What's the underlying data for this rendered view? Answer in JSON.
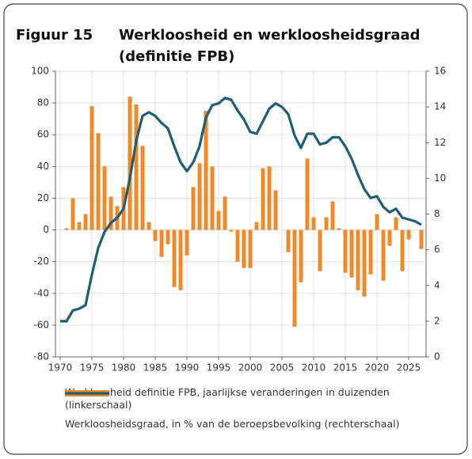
{
  "chart_data": {
    "type": "bar_line",
    "label": "Figuur 15",
    "title": [
      "Werkloosheid en werkloosheidsgraad",
      "(definitie FPB)"
    ],
    "x": [
      1970,
      1971,
      1972,
      1973,
      1974,
      1975,
      1976,
      1977,
      1978,
      1979,
      1980,
      1981,
      1982,
      1983,
      1984,
      1985,
      1986,
      1987,
      1988,
      1989,
      1990,
      1991,
      1992,
      1993,
      1994,
      1995,
      1996,
      1997,
      1998,
      1999,
      2000,
      2001,
      2002,
      2003,
      2004,
      2005,
      2006,
      2007,
      2008,
      2009,
      2010,
      2011,
      2012,
      2013,
      2014,
      2015,
      2016,
      2017,
      2018,
      2019,
      2020,
      2021,
      2022,
      2023,
      2024,
      2025,
      2026,
      2027
    ],
    "series": [
      {
        "name": "Werkloosheid definitie FPB, jaarlijkse veranderingen in duizenden (linkerschaal)",
        "kind": "bar",
        "color": "#f0892a",
        "axis": "y",
        "values": [
          0,
          1,
          20,
          5,
          10,
          78,
          61,
          40,
          21,
          15,
          27,
          84,
          79,
          53,
          5,
          -7,
          -17,
          -9,
          -36,
          -38,
          -16,
          27,
          42,
          75,
          40,
          12,
          21,
          -1,
          -20,
          -24,
          -24,
          5,
          39,
          40,
          25,
          0,
          -14,
          -61,
          -33,
          45,
          8,
          -26,
          8,
          18,
          1,
          -27,
          -30,
          -38,
          -42,
          -28,
          10,
          -32,
          -10,
          8,
          -26,
          -6,
          0,
          -12
        ]
      },
      {
        "name": "Werkloosheidsgraad, in % van de beroepsbevolking (rechterschaal)",
        "kind": "line",
        "color": "#1f5e74",
        "axis": "y2",
        "values": [
          2.0,
          2.0,
          2.6,
          2.7,
          2.9,
          4.6,
          6.1,
          7.0,
          7.5,
          7.8,
          8.3,
          10.0,
          12.1,
          13.5,
          13.7,
          13.5,
          13.1,
          12.8,
          11.8,
          10.9,
          10.4,
          10.9,
          11.8,
          13.4,
          14.1,
          14.2,
          14.5,
          14.4,
          13.8,
          13.3,
          12.6,
          12.5,
          13.2,
          13.9,
          14.2,
          14.0,
          13.6,
          12.4,
          11.7,
          12.5,
          12.5,
          11.9,
          12.0,
          12.3,
          12.3,
          11.8,
          11.1,
          10.2,
          9.4,
          8.9,
          9.0,
          8.4,
          8.1,
          8.3,
          7.8,
          7.7,
          7.6,
          7.4
        ]
      }
    ],
    "xlim": [
      1969.25,
      2027.75
    ],
    "xticks": [
      1970,
      1975,
      1980,
      1985,
      1990,
      1995,
      2000,
      2005,
      2010,
      2015,
      2020,
      2025
    ],
    "ylim": [
      -80,
      100
    ],
    "yticks": [
      -80,
      -60,
      -40,
      -20,
      0,
      20,
      40,
      60,
      80,
      100
    ],
    "y2lim": [
      0,
      16
    ],
    "y2ticks": [
      0,
      2,
      4,
      6,
      8,
      10,
      12,
      14,
      16
    ],
    "grid": true
  }
}
